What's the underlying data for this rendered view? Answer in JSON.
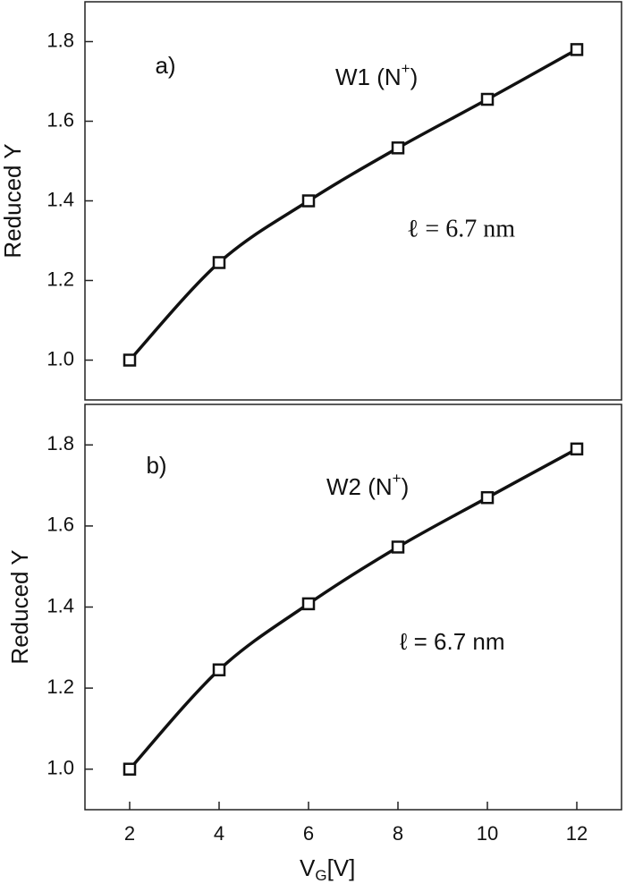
{
  "chart_data": [
    {
      "type": "line",
      "panel_label": "a)",
      "label": {
        "main": "W1 (N",
        "sup": "+",
        "end": ")"
      },
      "annotation": "ℓ = 6.7 nm",
      "y_label": "Reduced Y",
      "x": [
        2,
        4,
        6,
        8,
        10,
        12
      ],
      "series": [
        {
          "color": "#111111",
          "values": [
            1.0,
            1.245,
            1.4,
            1.533,
            1.655,
            1.78
          ]
        }
      ],
      "xlim": [
        1,
        13
      ],
      "ylim": [
        0.9,
        1.9
      ],
      "yticks": [
        {
          "value": 1.0,
          "label": "1.0"
        },
        1.2,
        1.4,
        1.6,
        1.8
      ]
    },
    {
      "type": "line",
      "panel_label": "b)",
      "label": {
        "main": "W2 (N",
        "sup": "+",
        "end": ")"
      },
      "annotation": "ℓ = 6.7 nm",
      "y_label": "Reduced Y",
      "x_label": {
        "main": "V",
        "sub": "G",
        "end": "[V]"
      },
      "x": [
        2,
        4,
        6,
        8,
        10,
        12
      ],
      "series": [
        {
          "color": "#111111",
          "values": [
            1.0,
            1.245,
            1.408,
            1.548,
            1.67,
            1.79
          ]
        }
      ],
      "xlim": [
        1,
        13
      ],
      "ylim": [
        0.9,
        1.9
      ],
      "xticks": [
        2,
        4,
        6,
        8,
        10,
        12
      ],
      "yticks": [
        {
          "value": 1.0,
          "label": "1.0"
        },
        1.2,
        1.4,
        1.6,
        1.8
      ]
    }
  ]
}
